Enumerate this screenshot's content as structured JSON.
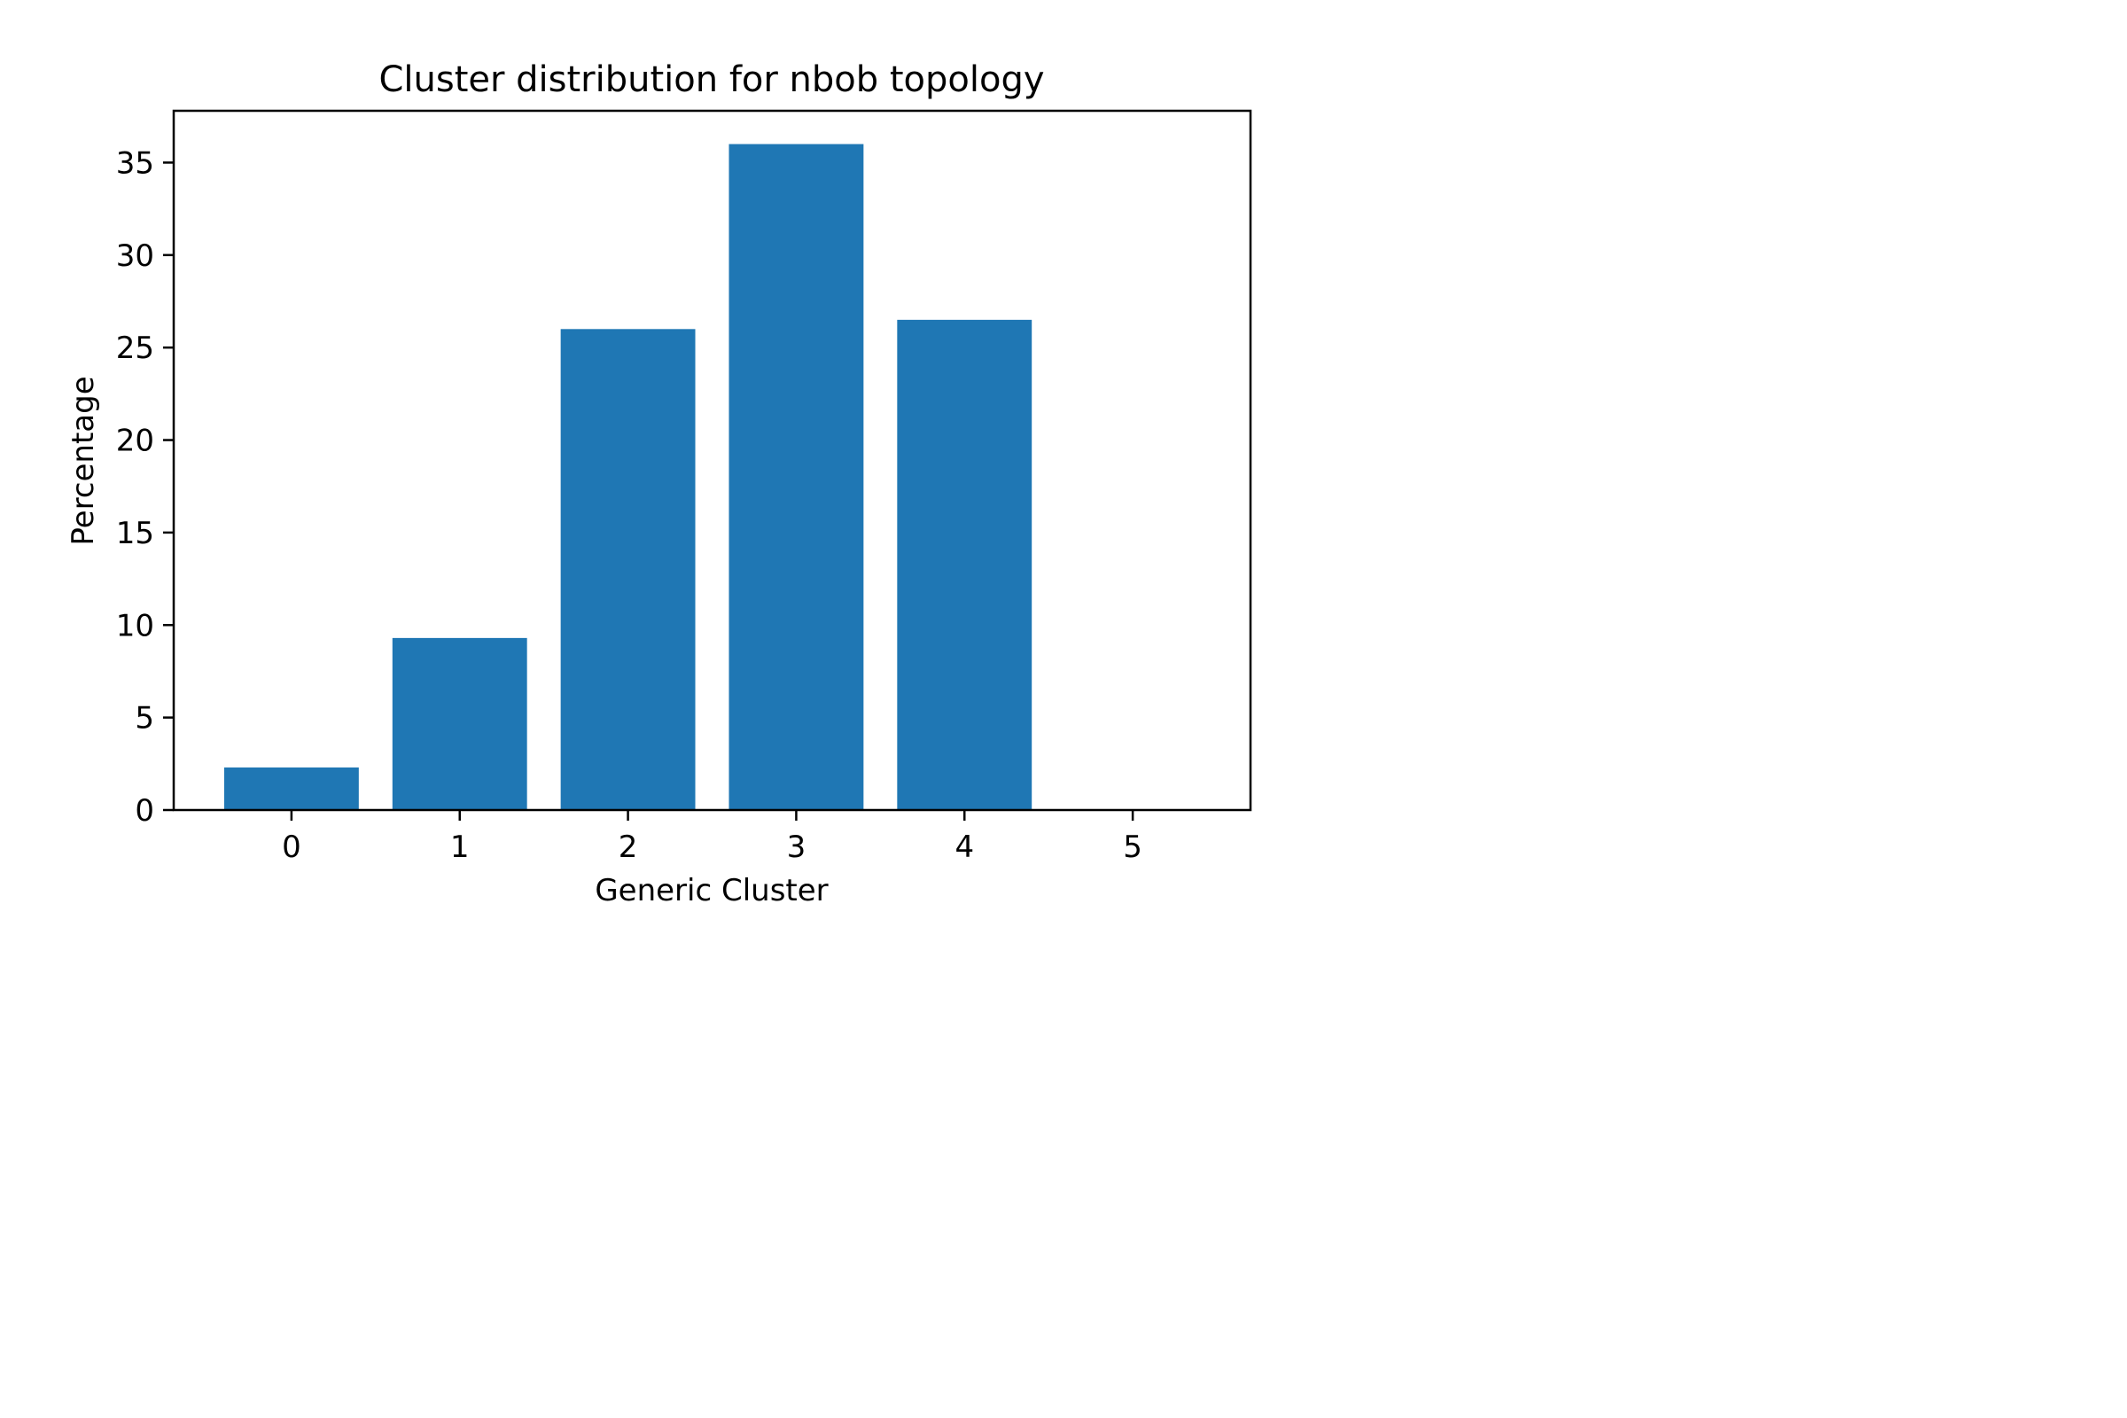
{
  "chart_data": {
    "type": "bar",
    "title": "Cluster distribution for nbob topology",
    "xlabel": "Generic Cluster",
    "ylabel": "Percentage",
    "categories": [
      "0",
      "1",
      "2",
      "3",
      "4",
      "5"
    ],
    "values": [
      2.3,
      9.3,
      26.0,
      36.0,
      26.5,
      0
    ],
    "xlim": [
      -0.7,
      5.7
    ],
    "ylim": [
      0,
      37.8
    ],
    "yticks": [
      0,
      5,
      10,
      15,
      20,
      25,
      30,
      35
    ],
    "bar_color": "#1f77b4",
    "grid": false,
    "legend": "none"
  }
}
